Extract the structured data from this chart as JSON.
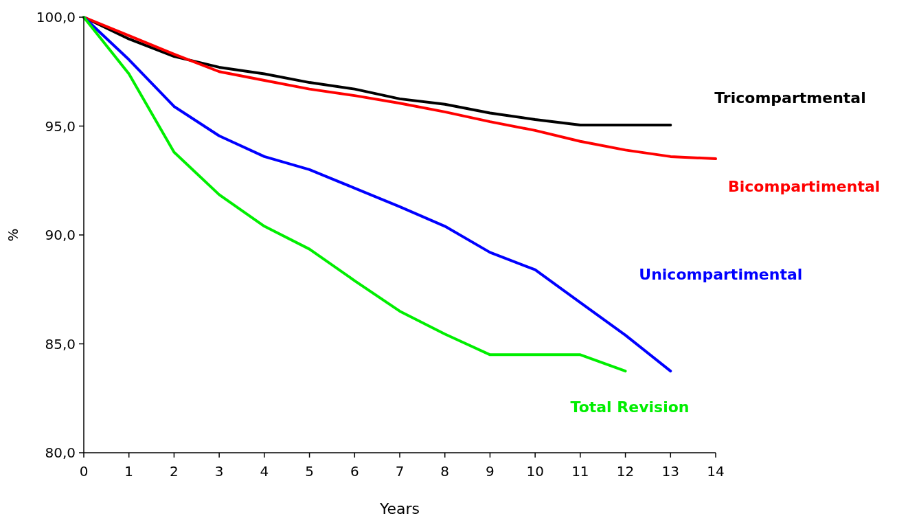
{
  "chart_data": {
    "type": "line",
    "xlabel": "Years",
    "ylabel": "%",
    "x": [
      0,
      1,
      2,
      3,
      4,
      5,
      6,
      7,
      8,
      9,
      10,
      11,
      12,
      13,
      14
    ],
    "xlim": [
      0,
      14
    ],
    "xticks": [
      0,
      1,
      2,
      3,
      4,
      5,
      6,
      7,
      8,
      9,
      10,
      11,
      12,
      13,
      14
    ],
    "ylim": [
      80,
      100
    ],
    "yticks": [
      {
        "value": 80,
        "label": "80,0"
      },
      {
        "value": 85,
        "label": "85,0"
      },
      {
        "value": 90,
        "label": "90,0"
      },
      {
        "value": 95,
        "label": "95,0"
      },
      {
        "value": 100,
        "label": "100,0"
      }
    ],
    "grid": false,
    "legend": false,
    "marker": "none",
    "line_style": "solid",
    "series": [
      {
        "name": "Tricompartmental",
        "color": "#000000",
        "values": [
          100,
          99.0,
          98.2,
          97.7,
          97.4,
          97.0,
          96.7,
          96.25,
          96.0,
          95.6,
          95.3,
          95.05,
          95.05,
          95.05,
          null
        ]
      },
      {
        "name": "Bicompartimental",
        "color": "#ff0000",
        "values": [
          100,
          99.15,
          98.3,
          97.5,
          97.1,
          96.7,
          96.4,
          96.05,
          95.65,
          95.2,
          94.8,
          94.3,
          93.9,
          93.6,
          93.5
        ]
      },
      {
        "name": "Unicompartimental",
        "color": "#0000ff",
        "values": [
          100,
          98.05,
          95.9,
          94.55,
          93.6,
          93.0,
          92.15,
          91.3,
          90.4,
          89.2,
          88.4,
          86.9,
          85.4,
          83.75,
          null
        ]
      },
      {
        "name": "Total Revision",
        "color": "#00ee00",
        "values": [
          100,
          97.4,
          93.8,
          91.85,
          90.4,
          89.35,
          87.9,
          86.5,
          85.45,
          84.5,
          84.5,
          84.5,
          83.75,
          null,
          null
        ]
      }
    ]
  }
}
